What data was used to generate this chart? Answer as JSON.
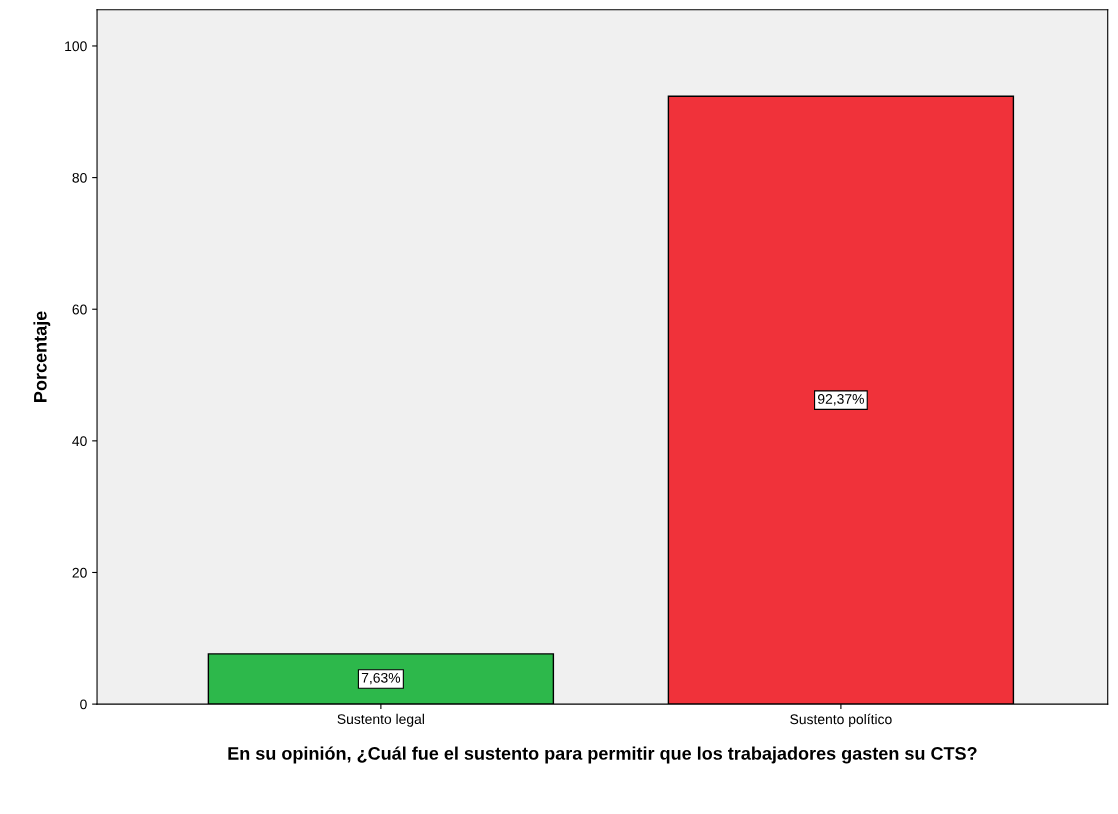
{
  "chart_data": {
    "type": "bar",
    "xlabel": "En su opinión, ¿Cuál fue el sustento para permitir que los trabajadores gasten su CTS?",
    "ylabel": "Porcentaje",
    "categories": [
      "Sustento legal",
      "Sustento político"
    ],
    "values": [
      7.63,
      92.37
    ],
    "colors": [
      "#2db84b",
      "#f0323a"
    ],
    "value_labels": [
      "7,63%",
      "92,37%"
    ],
    "ylim": [
      0,
      105.5
    ],
    "yticks": [
      0,
      20,
      40,
      60,
      80,
      100
    ],
    "grid": false
  }
}
